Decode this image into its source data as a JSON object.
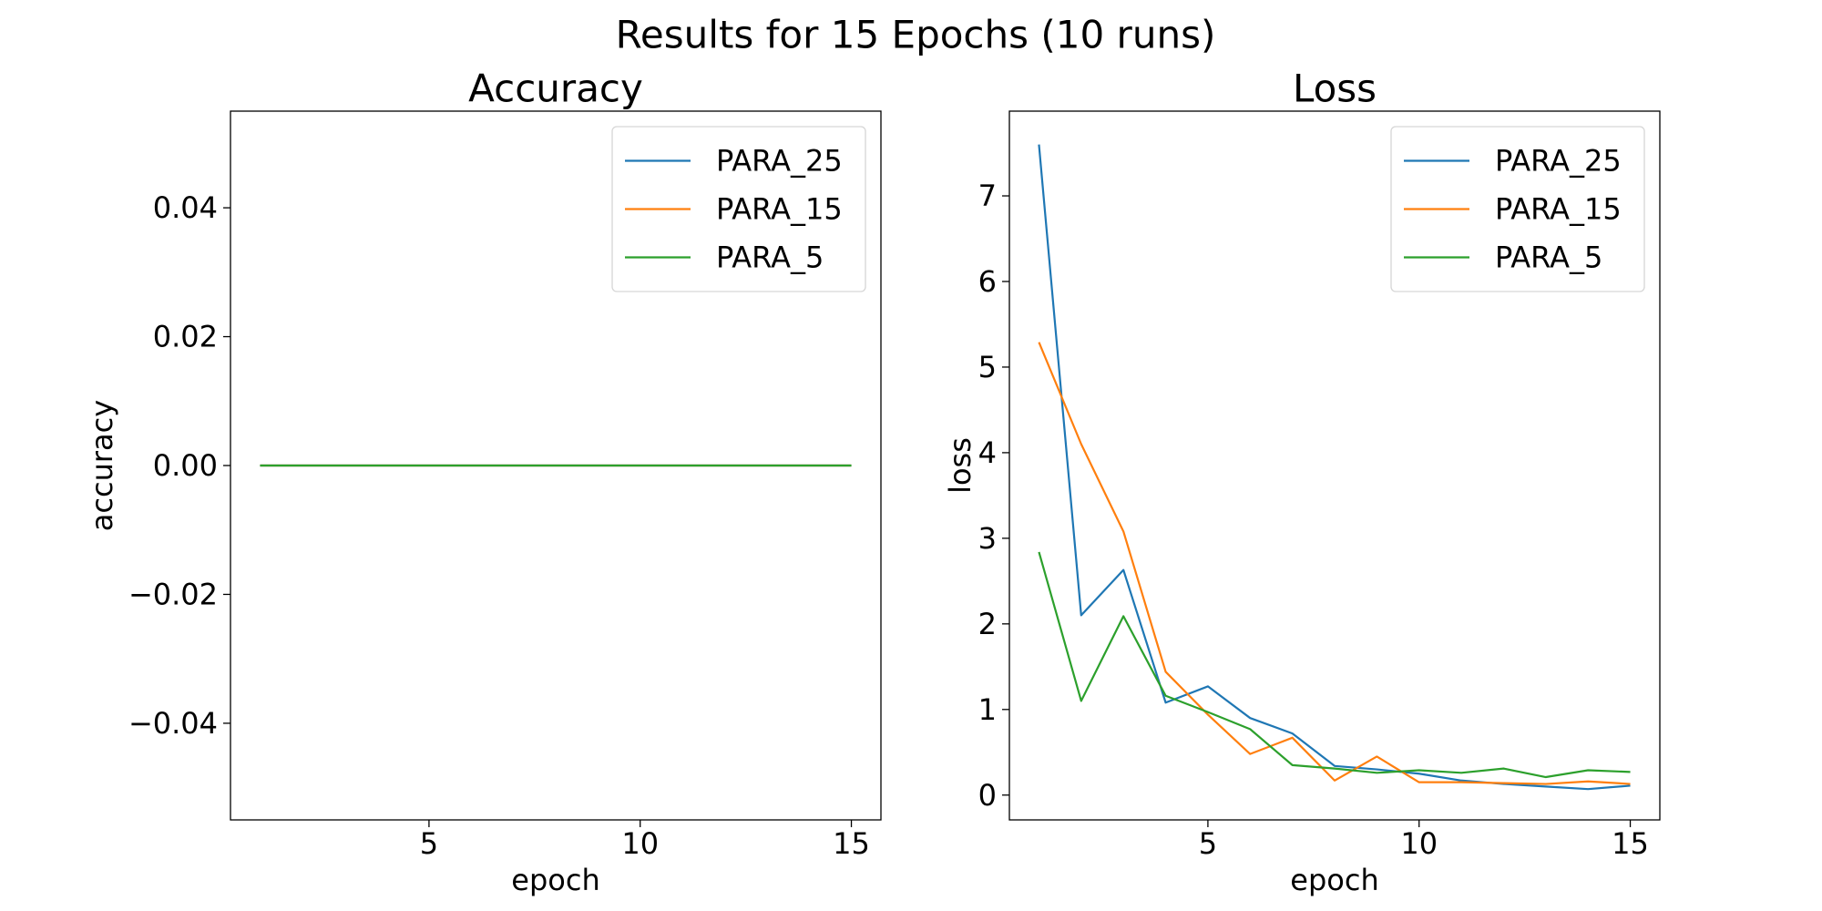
{
  "figure": {
    "title": "Results for 15 Epochs (10 runs)"
  },
  "chart_data": [
    {
      "type": "line",
      "title": "Accuracy",
      "xlabel": "epoch",
      "ylabel": "accuracy",
      "xlim": [
        0.3,
        15.7
      ],
      "ylim": [
        -0.055,
        0.055
      ],
      "xticks": [
        5,
        10,
        15
      ],
      "xtick_labels": [
        "5",
        "10",
        "15"
      ],
      "yticks": [
        0.04,
        0.02,
        0.0,
        -0.02,
        -0.04
      ],
      "ytick_labels": [
        "0.04",
        "0.02",
        "0.00",
        "−0.02",
        "−0.04"
      ],
      "grid": false,
      "legend": "upper right",
      "x": [
        1,
        2,
        3,
        4,
        5,
        6,
        7,
        8,
        9,
        10,
        11,
        12,
        13,
        14,
        15
      ],
      "series": [
        {
          "name": "PARA_25",
          "color": "#1f77b4",
          "values": [
            0,
            0,
            0,
            0,
            0,
            0,
            0,
            0,
            0,
            0,
            0,
            0,
            0,
            0,
            0
          ]
        },
        {
          "name": "PARA_15",
          "color": "#ff7f0e",
          "values": [
            0,
            0,
            0,
            0,
            0,
            0,
            0,
            0,
            0,
            0,
            0,
            0,
            0,
            0,
            0
          ]
        },
        {
          "name": "PARA_5",
          "color": "#2ca02c",
          "values": [
            0,
            0,
            0,
            0,
            0,
            0,
            0,
            0,
            0,
            0,
            0,
            0,
            0,
            0,
            0
          ]
        }
      ]
    },
    {
      "type": "line",
      "title": "Loss",
      "xlabel": "epoch",
      "ylabel": "loss",
      "xlim": [
        0.3,
        15.7
      ],
      "ylim": [
        -0.29,
        7.99
      ],
      "xticks": [
        5,
        10,
        15
      ],
      "xtick_labels": [
        "5",
        "10",
        "15"
      ],
      "yticks": [
        0,
        1,
        2,
        3,
        4,
        5,
        6,
        7
      ],
      "ytick_labels": [
        "0",
        "1",
        "2",
        "3",
        "4",
        "5",
        "6",
        "7"
      ],
      "grid": false,
      "legend": "upper right",
      "x": [
        1,
        2,
        3,
        4,
        5,
        6,
        7,
        8,
        9,
        10,
        11,
        12,
        13,
        14,
        15
      ],
      "series": [
        {
          "name": "PARA_25",
          "color": "#1f77b4",
          "values": [
            7.6,
            2.1,
            2.63,
            1.08,
            1.27,
            0.9,
            0.72,
            0.34,
            0.3,
            0.25,
            0.17,
            0.13,
            0.1,
            0.07,
            0.11
          ]
        },
        {
          "name": "PARA_15",
          "color": "#ff7f0e",
          "values": [
            5.29,
            4.1,
            3.08,
            1.44,
            0.94,
            0.48,
            0.67,
            0.17,
            0.45,
            0.15,
            0.15,
            0.14,
            0.13,
            0.16,
            0.13
          ]
        },
        {
          "name": "PARA_5",
          "color": "#2ca02c",
          "values": [
            2.84,
            1.1,
            2.09,
            1.16,
            0.97,
            0.77,
            0.35,
            0.31,
            0.26,
            0.29,
            0.26,
            0.31,
            0.21,
            0.29,
            0.27
          ]
        }
      ]
    }
  ]
}
